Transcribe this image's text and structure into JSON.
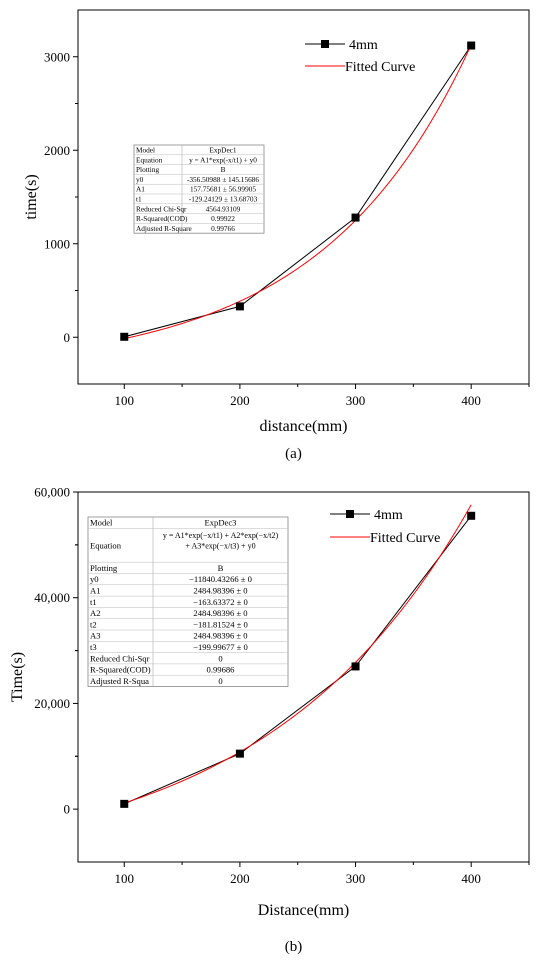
{
  "chart_data": [
    {
      "type": "scatter",
      "panel_label": "(a)",
      "xlabel": "distance(mm)",
      "ylabel": "time(s)",
      "xlim": [
        60,
        450
      ],
      "ylim": [
        -500,
        3500
      ],
      "x_ticks": [
        100,
        200,
        300,
        400
      ],
      "y_ticks": [
        0,
        1000,
        2000,
        3000
      ],
      "x_tick_labels": [
        "100",
        "200",
        "300",
        "400"
      ],
      "y_tick_labels": [
        "0",
        "1000",
        "2000",
        "3000"
      ],
      "grid": false,
      "legend_position": "top-right",
      "series": [
        {
          "name": "4mm",
          "x": [
            100,
            200,
            300,
            400
          ],
          "y": [
            5,
            330,
            1280,
            3120
          ],
          "color": "#000000",
          "marker": "square",
          "line": "straight"
        },
        {
          "name": "Fitted Curve",
          "color": "#ff0000",
          "model": "expdec1",
          "params": {
            "y0": -356.50988,
            "A1": 157.75681,
            "t1": -129.24129
          },
          "x_range": [
            100,
            400
          ]
        }
      ],
      "fit_table": [
        [
          "Model",
          "ExpDec1"
        ],
        [
          "Equation",
          "y = A1*exp(-x/t1) + y0"
        ],
        [
          "Plotting",
          "B"
        ],
        [
          "y0",
          "-356.50988 ± 145.15686"
        ],
        [
          "A1",
          "157.75681 ± 56.99905"
        ],
        [
          "t1",
          "-129.24129 ± 13.68703"
        ],
        [
          "Reduced Chi-Sqr",
          "4564.93109"
        ],
        [
          "R-Squared(COD)",
          "0.99922"
        ],
        [
          "Adjusted R-Square",
          "0.99766"
        ]
      ]
    },
    {
      "type": "scatter",
      "panel_label": "(b)",
      "xlabel": "Distance(mm)",
      "ylabel": "Time(s)",
      "xlim": [
        60,
        450
      ],
      "ylim": [
        -10000,
        60000
      ],
      "x_ticks": [
        100,
        200,
        300,
        400
      ],
      "y_ticks": [
        0,
        20000,
        40000,
        60000
      ],
      "x_tick_labels": [
        "100",
        "200",
        "300",
        "400"
      ],
      "y_tick_labels": [
        "0",
        "20,000",
        "40,000",
        "60,000"
      ],
      "grid": false,
      "legend_position": "top-right",
      "series": [
        {
          "name": "4mm",
          "x": [
            100,
            200,
            300,
            400
          ],
          "y": [
            1000,
            10500,
            27000,
            55500
          ],
          "color": "#000000",
          "marker": "square",
          "line": "straight"
        },
        {
          "name": "Fitted Curve",
          "color": "#ff0000",
          "model": "expdec3",
          "params": {
            "y0": -11840.43266,
            "A": 2484.98396,
            "t1": -163.63372,
            "t2": -181.81524,
            "t3": -199.99677
          },
          "x_range": [
            100,
            400
          ]
        }
      ],
      "fit_table": [
        [
          "Model",
          "ExpDec3"
        ],
        [
          "Equation",
          "y = A1*exp(−x/t1) + A2*exp(−x/t2) + A3*exp(−x/t3) + y0"
        ],
        [
          "Plotting",
          "B"
        ],
        [
          "y0",
          "−11840.43266 ± 0"
        ],
        [
          "A1",
          "2484.98396 ± 0"
        ],
        [
          "t1",
          "−163.63372 ± 0"
        ],
        [
          "A2",
          "2484.98396 ± 0"
        ],
        [
          "t2",
          "−181.81524 ± 0"
        ],
        [
          "A3",
          "2484.98396 ± 0"
        ],
        [
          "t3",
          "−199.99677 ± 0"
        ],
        [
          "Reduced Chi-Sqr",
          "0"
        ],
        [
          "R-Squared(COD)",
          "0.99686"
        ],
        [
          "Adjusted R-Squa",
          "0"
        ]
      ]
    }
  ]
}
